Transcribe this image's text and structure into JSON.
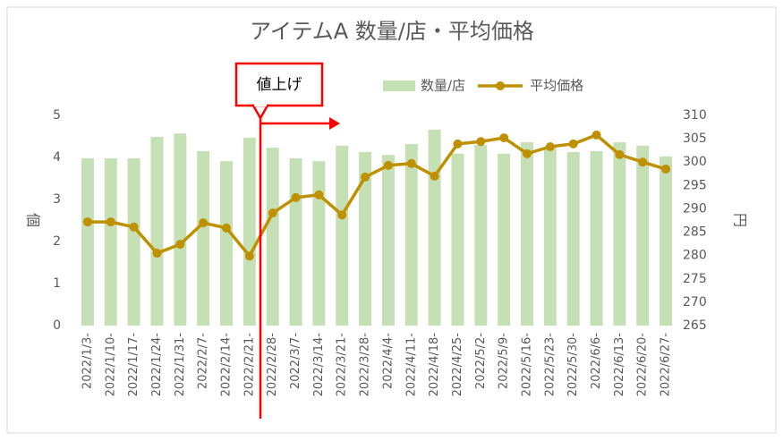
{
  "chart_data": {
    "type": "combo",
    "title": "アイテムA 数量/店・平均価格",
    "annotation": "値上げ",
    "y_label": "個",
    "y2_label": "円",
    "categories": [
      "2022/1/3-",
      "2022/1/10-",
      "2022/1/17-",
      "2022/1/24-",
      "2022/1/31-",
      "2022/2/7-",
      "2022/2/14-",
      "2022/2/21-",
      "2022/2/28-",
      "2022/3/7-",
      "2022/3/14-",
      "2022/3/21-",
      "2022/3/28-",
      "2022/4/4-",
      "2022/4/11-",
      "2022/4/18-",
      "2022/4/25-",
      "2022/5/2-",
      "2022/5/9-",
      "2022/5/16-",
      "2022/5/23-",
      "2022/5/30-",
      "2022/6/6-",
      "2022/6/13-",
      "2022/6/20-",
      "2022/6/27-"
    ],
    "series": [
      {
        "name": "数量/店",
        "color": "#c5e0b4",
        "mark": "bar",
        "values": [
          3.98,
          3.98,
          3.98,
          4.49,
          4.57,
          4.15,
          3.91,
          4.47,
          4.23,
          3.98,
          3.91,
          4.28,
          4.13,
          4.06,
          4.32,
          4.66,
          4.09,
          4.3,
          4.09,
          4.36,
          4.23,
          4.13,
          4.15,
          4.36,
          4.28,
          4.02
        ]
      },
      {
        "name": "平均価格",
        "color": "#bf9000",
        "mark": "line",
        "axis": "y2",
        "values": [
          287.2,
          287.2,
          286.1,
          280.5,
          282.4,
          287.0,
          285.9,
          279.9,
          289.1,
          292.4,
          293.0,
          288.7,
          296.8,
          299.3,
          299.7,
          297.0,
          303.9,
          304.4,
          305.2,
          301.8,
          303.3,
          303.9,
          305.8,
          301.6,
          300.0,
          298.5
        ]
      }
    ],
    "ylim": [
      0,
      5
    ],
    "yticks": [
      0,
      1,
      2,
      3,
      4,
      5
    ],
    "y2lim": [
      265,
      310
    ],
    "y2ticks": [
      265,
      270,
      275,
      280,
      285,
      290,
      295,
      300,
      305,
      310
    ],
    "grid": false,
    "legend": "top"
  }
}
